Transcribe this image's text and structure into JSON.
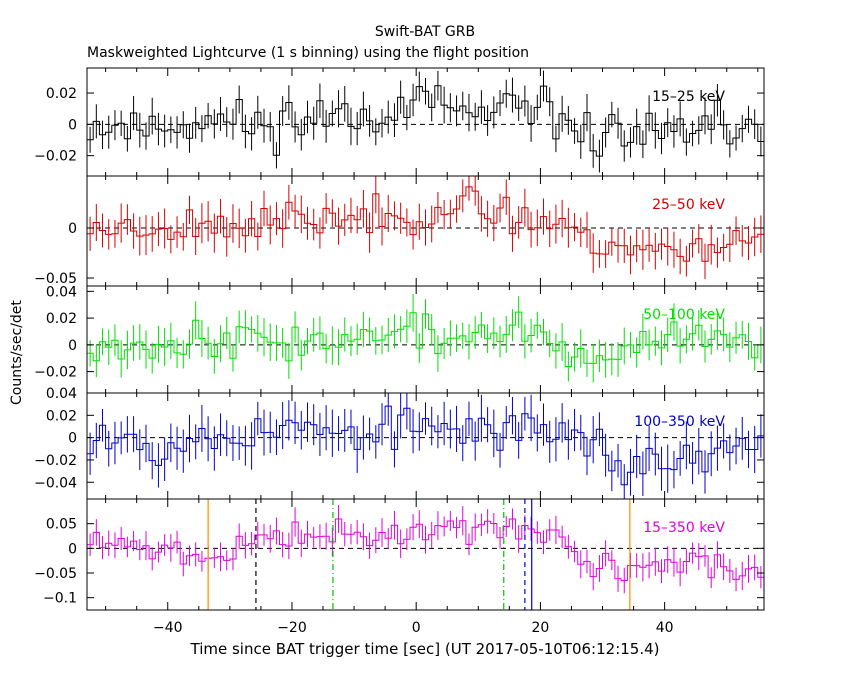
{
  "header": {
    "title": "Swift-BAT GRB",
    "subtitle": "Maskweighted Lightcurve (1 s binning) using the flight position"
  },
  "axes": {
    "xlabel": "Time since BAT trigger time [sec] (UT 2017-05-10T06:12:15.4)",
    "ylabel": "Counts/sec/det"
  },
  "chart_data": {
    "type": "line",
    "style": "histogram-step-with-errorbars",
    "xlim": [
      -53,
      56
    ],
    "xticks": [
      -40,
      -20,
      0,
      20,
      40
    ],
    "grid": false,
    "panels": [
      {
        "name": "15-25 keV",
        "label": "15–25 keV",
        "color": "#000000",
        "ylim": [
          -0.033,
          0.036
        ],
        "yticks": [
          -0.02,
          0,
          0.02
        ],
        "yticklabels": [
          "−0.02",
          "0",
          "0.02"
        ],
        "error": 0.01,
        "seed": 11,
        "amp": 0.011,
        "knots": [
          [
            -53,
            0.0
          ],
          [
            -45,
            -0.002
          ],
          [
            -35,
            0.002
          ],
          [
            -25,
            0.0
          ],
          [
            -10,
            0.008
          ],
          [
            0,
            0.012
          ],
          [
            10,
            0.006
          ],
          [
            20,
            0.005
          ],
          [
            30,
            -0.006
          ],
          [
            40,
            -0.008
          ],
          [
            50,
            -0.003
          ],
          [
            56,
            0.0
          ]
        ]
      },
      {
        "name": "25-50 keV",
        "label": "25–50 keV",
        "color": "#d40000",
        "ylim": [
          -0.058,
          0.052
        ],
        "yticks": [
          -0.05,
          0
        ],
        "yticklabels": [
          "−0.05",
          "0"
        ],
        "error": 0.017,
        "seed": 23,
        "amp": 0.013,
        "knots": [
          [
            -53,
            0.0
          ],
          [
            -40,
            0.002
          ],
          [
            -25,
            0.005
          ],
          [
            -10,
            0.01
          ],
          [
            0,
            0.015
          ],
          [
            10,
            0.02
          ],
          [
            18,
            0.01
          ],
          [
            23,
            0.008
          ],
          [
            27,
            -0.012
          ],
          [
            35,
            -0.02
          ],
          [
            45,
            -0.022
          ],
          [
            56,
            -0.005
          ]
        ]
      },
      {
        "name": "50-100 keV",
        "label": "50–100 keV",
        "color": "#00e000",
        "ylim": [
          -0.036,
          0.044
        ],
        "yticks": [
          -0.02,
          0,
          0.02,
          0.04
        ],
        "yticklabels": [
          "−0.02",
          "0",
          "0.02",
          "0.04"
        ],
        "error": 0.012,
        "seed": 37,
        "amp": 0.01,
        "knots": [
          [
            -53,
            0.0
          ],
          [
            -30,
            0.005
          ],
          [
            -20,
            0.003
          ],
          [
            -10,
            0.005
          ],
          [
            0,
            0.01
          ],
          [
            5,
            0.003
          ],
          [
            15,
            0.012
          ],
          [
            20,
            0.005
          ],
          [
            25,
            -0.01
          ],
          [
            35,
            -0.004
          ],
          [
            48,
            0.008
          ],
          [
            56,
            -0.012
          ]
        ]
      },
      {
        "name": "100-350 keV",
        "label": "100–350 keV",
        "color": "#0000c8",
        "ylim": [
          -0.055,
          0.04
        ],
        "yticks": [
          -0.04,
          -0.02,
          0,
          0.02,
          0.04
        ],
        "yticklabels": [
          "−0.04",
          "−0.02",
          "0",
          "0.02",
          "0.04"
        ],
        "error": 0.018,
        "seed": 53,
        "amp": 0.013,
        "knots": [
          [
            -53,
            0.005
          ],
          [
            -40,
            -0.005
          ],
          [
            -30,
            0.0
          ],
          [
            -20,
            0.01
          ],
          [
            -10,
            0.0
          ],
          [
            0,
            0.01
          ],
          [
            10,
            0.005
          ],
          [
            20,
            0.008
          ],
          [
            28,
            0.005
          ],
          [
            33,
            -0.03
          ],
          [
            40,
            -0.02
          ],
          [
            50,
            -0.015
          ],
          [
            56,
            -0.01
          ]
        ]
      },
      {
        "name": "15-350 keV",
        "label": "15–350 keV",
        "color": "#e000e0",
        "ylim": [
          -0.125,
          0.1
        ],
        "yticks": [
          -0.1,
          -0.05,
          0,
          0.05
        ],
        "yticklabels": [
          "−0.1",
          "−0.05",
          "0",
          "0.05"
        ],
        "error": 0.025,
        "seed": 71,
        "amp": 0.02,
        "knots": [
          [
            -53,
            0.01
          ],
          [
            -40,
            -0.005
          ],
          [
            -33,
            -0.02
          ],
          [
            -25,
            0.02
          ],
          [
            -15,
            0.03
          ],
          [
            -5,
            0.02
          ],
          [
            0,
            0.04
          ],
          [
            10,
            0.04
          ],
          [
            16,
            0.05
          ],
          [
            22,
            0.02
          ],
          [
            27,
            -0.03
          ],
          [
            35,
            -0.04
          ],
          [
            45,
            -0.03
          ],
          [
            56,
            -0.05
          ]
        ]
      }
    ],
    "markers": [
      {
        "x": -33.5,
        "color": "#ff8c00",
        "style": "solid"
      },
      {
        "x": -25.8,
        "color": "#000000",
        "style": "dashed"
      },
      {
        "x": -13.4,
        "color": "#00c000",
        "style": "dashdot"
      },
      {
        "x": 14.1,
        "color": "#00c000",
        "style": "dashdot"
      },
      {
        "x": 17.5,
        "color": "#0000c8",
        "style": "dashed"
      },
      {
        "x": 18.6,
        "color": "#0000c8",
        "style": "solid"
      },
      {
        "x": 34.4,
        "color": "#ff8c00",
        "style": "solid"
      }
    ]
  }
}
